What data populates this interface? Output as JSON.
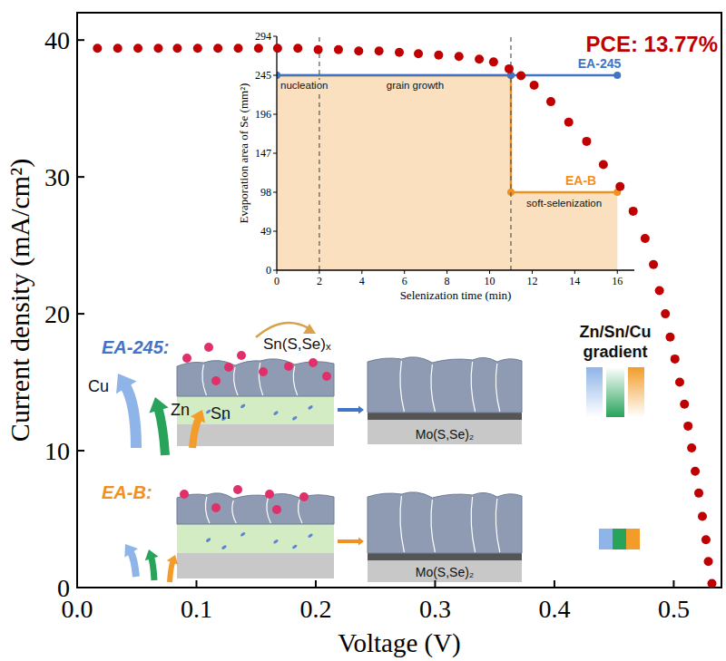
{
  "chart_data": [
    {
      "type": "scatter",
      "x_label": "Voltage (V)",
      "y_label": "Current density (mA/cm²)",
      "x": [
        0.017,
        0.034,
        0.051,
        0.068,
        0.084,
        0.101,
        0.118,
        0.135,
        0.152,
        0.168,
        0.185,
        0.202,
        0.219,
        0.236,
        0.253,
        0.27,
        0.286,
        0.303,
        0.32,
        0.337,
        0.349,
        0.362,
        0.372,
        0.383,
        0.397,
        0.412,
        0.427,
        0.441,
        0.455,
        0.466,
        0.476,
        0.483,
        0.488,
        0.493,
        0.497,
        0.501,
        0.505,
        0.509,
        0.512,
        0.515,
        0.518,
        0.521,
        0.524,
        0.527,
        0.529,
        0.532
      ],
      "values": [
        39.4,
        39.4,
        39.4,
        39.4,
        39.4,
        39.4,
        39.4,
        39.4,
        39.4,
        39.4,
        39.4,
        39.3,
        39.3,
        39.2,
        39.2,
        39.1,
        39.0,
        38.9,
        38.8,
        38.6,
        38.4,
        37.9,
        37.4,
        36.7,
        35.5,
        34.0,
        32.6,
        30.9,
        29.3,
        27.5,
        25.5,
        23.6,
        21.7,
        20.0,
        18.3,
        16.7,
        15.0,
        13.4,
        11.8,
        10.2,
        8.5,
        6.9,
        5.2,
        3.5,
        1.9,
        0.3
      ],
      "color": "#c00000",
      "marker": "circle",
      "xlim": [
        0,
        0.54
      ],
      "ylim": [
        0,
        42
      ],
      "xticks": [
        {
          "value": 0,
          "label": "0.0"
        },
        0.1,
        0.2,
        0.3,
        0.4,
        0.5
      ],
      "yticks": [
        0,
        10,
        20,
        30,
        40
      ],
      "grid": false,
      "annotations": [
        "PCE: 13.77%"
      ]
    },
    {
      "type": "line",
      "x_label": "Selenization time (min)",
      "y_label": "Evaporation area of Se (mm²)",
      "xlim": [
        0,
        16.8
      ],
      "ylim": [
        0,
        294
      ],
      "xticks": [
        0,
        2,
        4,
        6,
        8,
        10,
        12,
        14,
        16
      ],
      "yticks": [
        0,
        49,
        98,
        147,
        196,
        245,
        294
      ],
      "grid": false,
      "vlines": [
        2,
        11
      ],
      "annotations": [
        "nucleation",
        "grain growth",
        "soft-selenization"
      ],
      "series": [
        {
          "name": "EA-245",
          "color": "#3f74c6",
          "type": "line",
          "marker": "circle",
          "x": [
            0,
            11,
            16
          ],
          "values": [
            245,
            245,
            245
          ]
        },
        {
          "name": "EA-B",
          "color": "#f0901e",
          "type": "area",
          "marker": "circle",
          "x": [
            0,
            11,
            11,
            16
          ],
          "values": [
            245,
            245,
            98,
            98
          ]
        }
      ]
    }
  ],
  "schematic": {
    "rows": [
      {
        "label": "EA-245:",
        "color": "#3f74c6",
        "elements": [
          {
            "name": "Cu",
            "color": "#8fb4e8"
          },
          {
            "name": "Zn",
            "color": "#27a35a"
          },
          {
            "name": "Sn",
            "color": "#f39c2a"
          }
        ],
        "byproduct": "Sn(S,Se)ₓ",
        "interface": "Mo(S,Se)₂",
        "gradient_label": "Zn/Sn/Cu gradient"
      },
      {
        "label": "EA-B:",
        "color": "#f0901e",
        "elements": [
          {
            "color": "#8fb4e8"
          },
          {
            "color": "#27a35a"
          },
          {
            "color": "#f39c2a"
          }
        ],
        "interface": "Mo(S,Se)₂"
      }
    ]
  }
}
